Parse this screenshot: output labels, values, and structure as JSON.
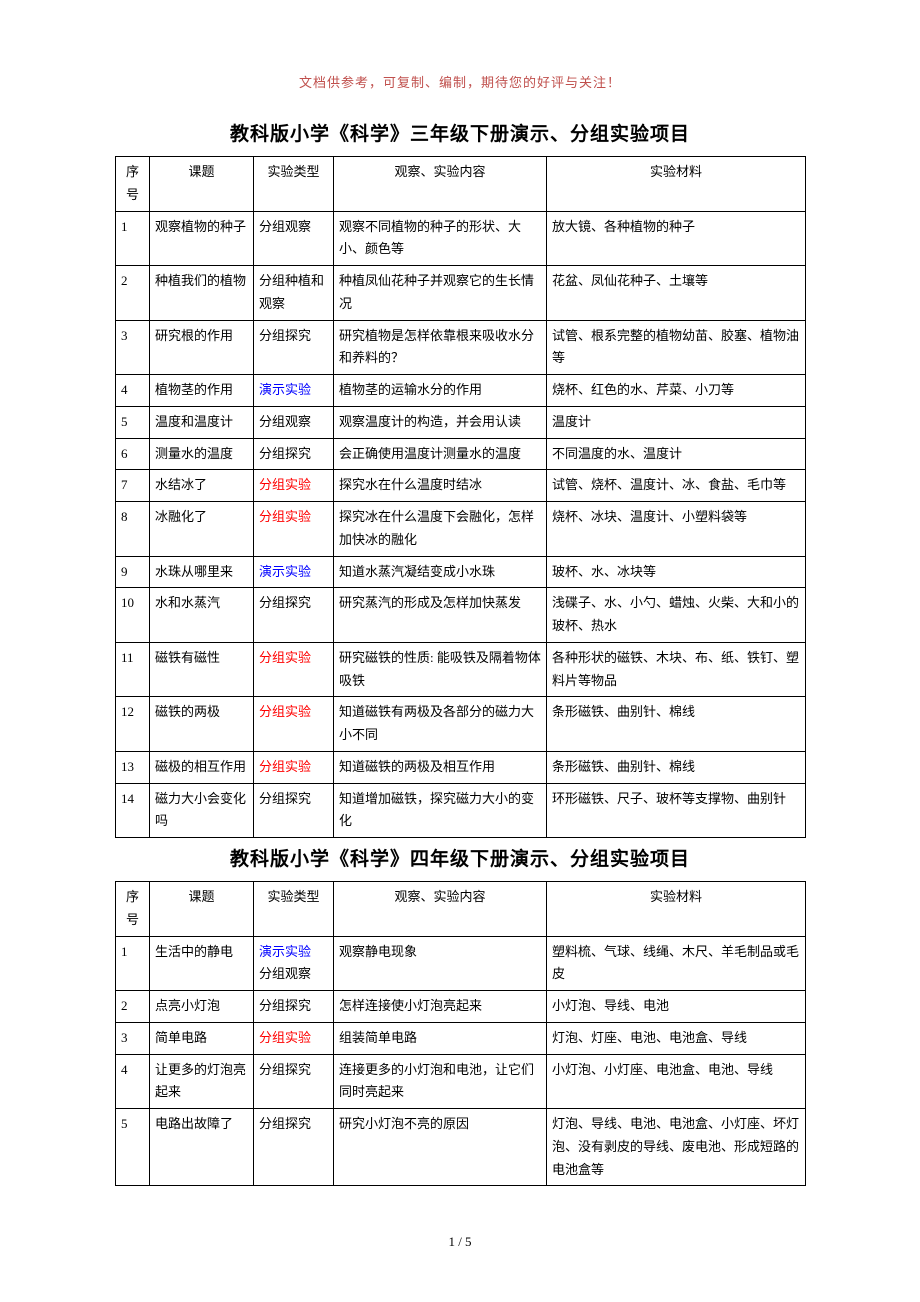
{
  "header_note": "文档供参考，可复制、编制，期待您的好评与关注！",
  "title1": "教科版小学《科学》三年级下册演示、分组实验项目",
  "title2": "教科版小学《科学》四年级下册演示、分组实验项目",
  "footer": "1 / 5",
  "columns": {
    "no": "序号",
    "topic": "课题",
    "type": "实验类型",
    "content": "观察、实验内容",
    "material": "实验材料"
  },
  "colors": {
    "blue": "#0000ff",
    "red": "#ff0000",
    "header_note": "#c0504d"
  },
  "table1_rows": [
    {
      "no": "1",
      "topic": "观察植物的种子",
      "type": [
        {
          "text": "分组观察",
          "color": ""
        }
      ],
      "content": "观察不同植物的种子的形状、大小、颜色等",
      "material": "放大镜、各种植物的种子"
    },
    {
      "no": "2",
      "topic": "种植我们的植物",
      "type": [
        {
          "text": "分组种植和观察",
          "color": ""
        }
      ],
      "content": "种植凤仙花种子并观察它的生长情况",
      "material": "花盆、凤仙花种子、土壤等"
    },
    {
      "no": "3",
      "topic": "研究根的作用",
      "type": [
        {
          "text": "分组探究",
          "color": ""
        }
      ],
      "content": "研究植物是怎样依靠根来吸收水分和养料的？",
      "material": "试管、根系完整的植物幼苗、胶塞、植物油等"
    },
    {
      "no": "4",
      "topic": "植物茎的作用",
      "type": [
        {
          "text": "演示实验",
          "color": "blue"
        }
      ],
      "content": "植物茎的运输水分的作用",
      "material": "烧杯、红色的水、芹菜、小刀等"
    },
    {
      "no": "5",
      "topic": "温度和温度计",
      "type": [
        {
          "text": "分组观察",
          "color": ""
        }
      ],
      "content": "观察温度计的构造，并会用认读",
      "material": "温度计"
    },
    {
      "no": "6",
      "topic": "测量水的温度",
      "type": [
        {
          "text": "分组探究",
          "color": ""
        }
      ],
      "content": "会正确使用温度计测量水的温度",
      "material": "不同温度的水、温度计"
    },
    {
      "no": "7",
      "topic": "水结冰了",
      "type": [
        {
          "text": "分组实验",
          "color": "red"
        }
      ],
      "content": "探究水在什么温度时结冰",
      "material": "试管、烧杯、温度计、冰、食盐、毛巾等"
    },
    {
      "no": "8",
      "topic": "冰融化了",
      "type": [
        {
          "text": "分组实验",
          "color": "red"
        }
      ],
      "content": "探究冰在什么温度下会融化，怎样加快冰的融化",
      "material": "烧杯、冰块、温度计、小塑料袋等"
    },
    {
      "no": "9",
      "topic": "水珠从哪里来",
      "type": [
        {
          "text": "演示实验",
          "color": "blue"
        }
      ],
      "content": "知道水蒸汽凝结变成小水珠",
      "material": "玻杯、水、冰块等"
    },
    {
      "no": "10",
      "topic": "水和水蒸汽",
      "type": [
        {
          "text": "分组探究",
          "color": ""
        }
      ],
      "content": "研究蒸汽的形成及怎样加快蒸发",
      "material": "浅碟子、水、小勺、蜡烛、火柴、大和小的玻杯、热水"
    },
    {
      "no": "11",
      "topic": "磁铁有磁性",
      "type": [
        {
          "text": "分组实验",
          "color": "red"
        }
      ],
      "content": "研究磁铁的性质: 能吸铁及隔着物体吸铁",
      "material": "各种形状的磁铁、木块、布、纸、铁钉、塑料片等物品"
    },
    {
      "no": "12",
      "topic": "磁铁的两极",
      "type": [
        {
          "text": "分组实验",
          "color": "red"
        }
      ],
      "content": "知道磁铁有两极及各部分的磁力大小不同",
      "material": "条形磁铁、曲别针、棉线"
    },
    {
      "no": "13",
      "topic": "磁极的相互作用",
      "type": [
        {
          "text": "分组实验",
          "color": "red"
        }
      ],
      "content": "知道磁铁的两极及相互作用",
      "material": "条形磁铁、曲别针、棉线"
    },
    {
      "no": "14",
      "topic": "磁力大小会变化吗",
      "type": [
        {
          "text": "分组探究",
          "color": ""
        }
      ],
      "content": "知道增加磁铁，探究磁力大小的变化",
      "material": "环形磁铁、尺子、玻杯等支撑物、曲别针"
    }
  ],
  "table2_rows": [
    {
      "no": "1",
      "topic": "生活中的静电",
      "type": [
        {
          "text": "演示实验",
          "color": "blue"
        },
        {
          "text": "分组观察",
          "color": ""
        }
      ],
      "content": "观察静电现象",
      "material": "塑料梳、气球、线绳、木尺、羊毛制品或毛皮"
    },
    {
      "no": "2",
      "topic": "点亮小灯泡",
      "type": [
        {
          "text": "分组探究",
          "color": ""
        }
      ],
      "content": "怎样连接使小灯泡亮起来",
      "material": "小灯泡、导线、电池"
    },
    {
      "no": "3",
      "topic": "简单电路",
      "type": [
        {
          "text": "分组实验",
          "color": "red"
        }
      ],
      "content": "组装简单电路",
      "material": "灯泡、灯座、电池、电池盒、导线"
    },
    {
      "no": "4",
      "topic": "让更多的灯泡亮起来",
      "type": [
        {
          "text": "分组探究",
          "color": ""
        }
      ],
      "content": "连接更多的小灯泡和电池，让它们同时亮起来",
      "material": "小灯泡、小灯座、电池盒、电池、导线"
    },
    {
      "no": "5",
      "topic": "电路出故障了",
      "type": [
        {
          "text": "分组探究",
          "color": ""
        }
      ],
      "content": "研究小灯泡不亮的原因",
      "material": "灯泡、导线、电池、电池盒、小灯座、坏灯泡、没有剥皮的导线、废电池、形成短路的电池盒等"
    }
  ]
}
